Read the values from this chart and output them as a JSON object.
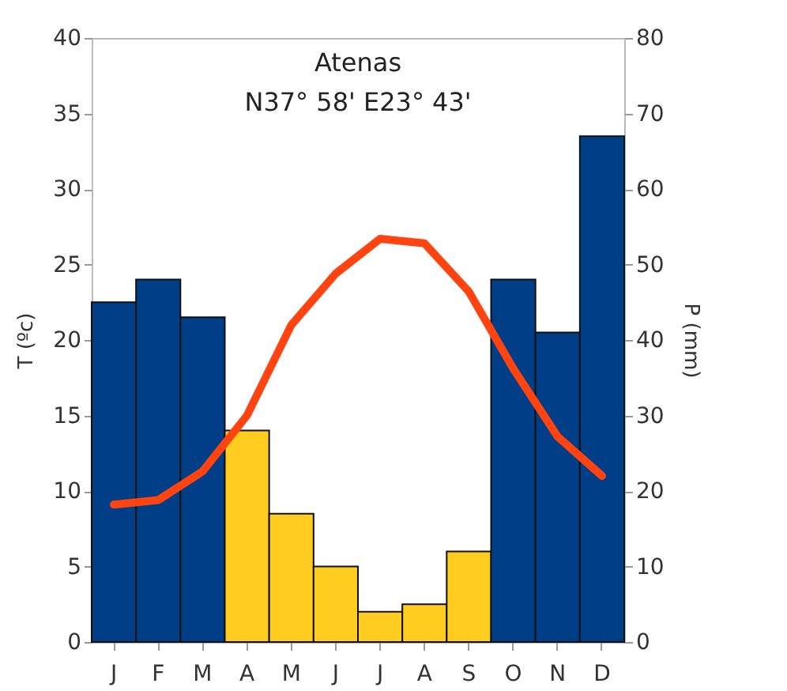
{
  "chart_data": {
    "type": "bar",
    "title": "Atenas",
    "subtitle": "N37° 58' E23° 43'",
    "ylabel": "T (ºc)",
    "y2label": "P (mm)",
    "categories": [
      "J",
      "F",
      "M",
      "A",
      "M",
      "J",
      "J",
      "A",
      "S",
      "O",
      "N",
      "D"
    ],
    "series": [
      {
        "axis": "y2",
        "colors": [
          "#003f87",
          "#003f87",
          "#003f87",
          "#ffcc1f",
          "#ffcc1f",
          "#ffcc1f",
          "#ffcc1f",
          "#ffcc1f",
          "#ffcc1f",
          "#003f87",
          "#003f87",
          "#003f87"
        ],
        "values": [
          45,
          48,
          43,
          28,
          17,
          10,
          4,
          5,
          12,
          48,
          41,
          67
        ]
      },
      {
        "type": "line",
        "color": "#ff4411",
        "values": [
          9.1,
          9.4,
          11.3,
          15,
          21,
          24.4,
          26.7,
          26.4,
          23.2,
          18.1,
          13.6,
          11.0
        ]
      }
    ],
    "ylim": [
      0,
      40
    ],
    "yticks": [
      0,
      5,
      10,
      15,
      20,
      25,
      30,
      35,
      40
    ],
    "y2lim": [
      0,
      80
    ],
    "y2ticks": [
      0,
      10,
      20,
      30,
      40,
      50,
      60,
      70,
      80
    ],
    "grid": false,
    "marker": "none",
    "line_style": "solid"
  }
}
